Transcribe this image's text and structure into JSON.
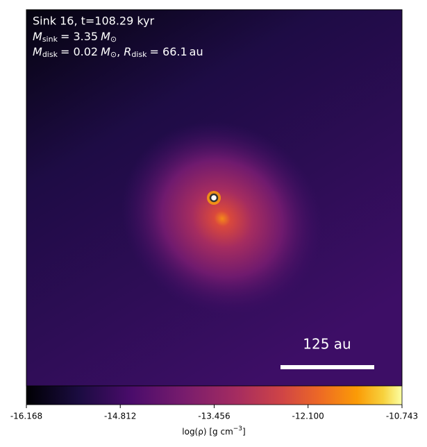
{
  "chart_data": {
    "type": "heatmap",
    "annotation": {
      "line1": "Sink 16, t=108.29 kyr",
      "line2": [
        "M",
        "sink",
        "= 3.35",
        "M",
        "⊙"
      ],
      "line3": [
        "M",
        "disk",
        "= 0.02",
        "M",
        "⊙",
        ", ",
        "R",
        "disk",
        "= 66.1",
        "au"
      ]
    },
    "scale_bar": "125 au",
    "colorbar_label": [
      "log(ρ) [g cm",
      "−3",
      "]"
    ],
    "clim": [
      -16.168,
      -10.743
    ],
    "cticks": [
      -16.168,
      -14.812,
      -13.456,
      {
        "value": -12.1,
        "label": "-12.100"
      },
      -10.743
    ]
  }
}
